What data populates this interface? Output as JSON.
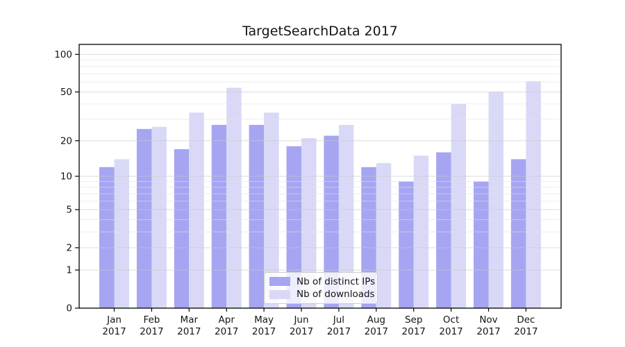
{
  "chart_data": {
    "type": "bar",
    "title": "TargetSearchData 2017",
    "categories": [
      "Jan 2017",
      "Feb 2017",
      "Mar 2017",
      "Apr 2017",
      "May 2017",
      "Jun 2017",
      "Jul 2017",
      "Aug 2017",
      "Sep 2017",
      "Oct 2017",
      "Nov 2017",
      "Dec 2017"
    ],
    "series": [
      {
        "name": "Nb of distinct IPs",
        "color": "#a5a5f2",
        "values": [
          12,
          25,
          17,
          27,
          27,
          18,
          22,
          12,
          9,
          16,
          9,
          14
        ]
      },
      {
        "name": "Nb of downloads",
        "color": "#d9d9f7",
        "values": [
          14,
          26,
          34,
          54,
          34,
          21,
          27,
          13,
          15,
          40,
          50,
          61
        ]
      }
    ],
    "xlabel": "",
    "ylabel": "",
    "yscale": "symlog-log1p",
    "yticks": [
      0,
      1,
      2,
      5,
      10,
      20,
      50,
      100
    ],
    "minor_yticks": [
      3,
      4,
      6,
      7,
      8,
      9,
      30,
      40,
      60,
      70,
      80,
      90
    ],
    "ylim": [
      0,
      120
    ],
    "grid": "horizontal major and minor gridlines drawn above bars",
    "legend": {
      "position": "lower center inside plot",
      "entries": [
        "Nb of distinct IPs",
        "Nb of downloads"
      ]
    }
  },
  "colors": {
    "background": "#ffffff",
    "bar_dark": "#a5a5f2",
    "bar_light": "#d9d9f7",
    "grid_major": "#c9c9c9",
    "grid_minor": "#e2e2e2",
    "axis": "#000000",
    "text": "#141414"
  }
}
